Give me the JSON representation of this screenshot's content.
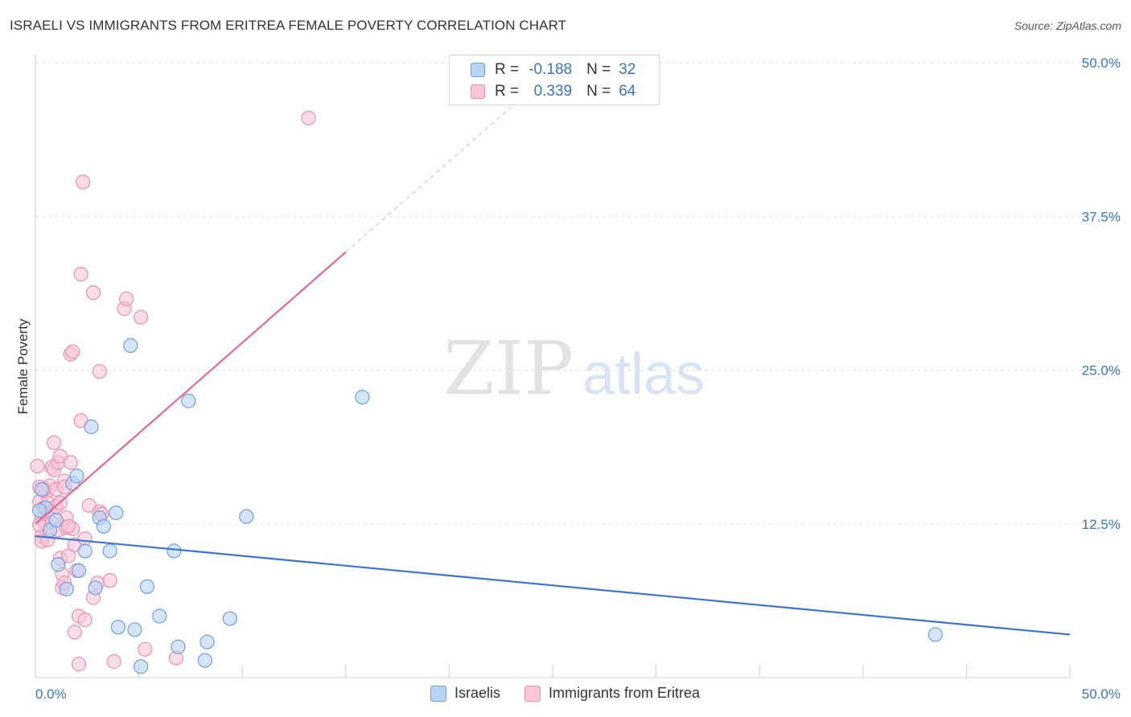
{
  "title": "ISRAELI VS IMMIGRANTS FROM ERITREA FEMALE POVERTY CORRELATION CHART",
  "source": "Source: ZipAtlas.com",
  "watermark": {
    "zip": "ZIP",
    "atlas": "atlas"
  },
  "legend_top": {
    "rows": [
      {
        "r_label": "R =",
        "r_value": "-0.188",
        "n_label": "N =",
        "n_value": "32"
      },
      {
        "r_label": "R =",
        "r_value": "0.339",
        "n_label": "N =",
        "n_value": "64"
      }
    ]
  },
  "legend_bottom": [
    "Israelis",
    "Immigrants from Eritrea"
  ],
  "colors": {
    "blue_fill": "#b9d3f5",
    "blue_stroke": "#6d9fe0",
    "blue_line": "#3a76cf",
    "pink_fill": "#f8c6d6",
    "pink_stroke": "#ec8fb0",
    "pink_line": "#e5688f",
    "grid": "#dddddd",
    "tick_label": "#3a72c8"
  },
  "chart_data": {
    "type": "scatter",
    "title": "ISRAELI VS IMMIGRANTS FROM ERITREA FEMALE POVERTY CORRELATION CHART",
    "xlabel": "",
    "ylabel": "Female Poverty",
    "xlim": [
      0,
      50
    ],
    "ylim": [
      0,
      50
    ],
    "x_tick_labels": [
      "0.0%",
      "50.0%"
    ],
    "y_ticks": [
      12.5,
      25.0,
      37.5,
      50.0
    ],
    "y_tick_labels": [
      "12.5%",
      "25.0%",
      "37.5%",
      "50.0%"
    ],
    "grid": true,
    "series": [
      {
        "name": "Israelis",
        "r": -0.188,
        "n": 32,
        "points": [
          [
            0.5,
            13.8
          ],
          [
            0.3,
            15.3
          ],
          [
            0.7,
            12.0
          ],
          [
            1.0,
            12.8
          ],
          [
            1.1,
            9.2
          ],
          [
            1.5,
            7.2
          ],
          [
            1.8,
            15.8
          ],
          [
            2.0,
            16.4
          ],
          [
            2.1,
            8.7
          ],
          [
            2.4,
            10.3
          ],
          [
            2.7,
            20.4
          ],
          [
            2.9,
            7.3
          ],
          [
            3.1,
            13.0
          ],
          [
            3.3,
            12.3
          ],
          [
            3.6,
            10.3
          ],
          [
            3.9,
            13.4
          ],
          [
            4.0,
            4.1
          ],
          [
            4.6,
            27.0
          ],
          [
            4.8,
            3.9
          ],
          [
            5.1,
            0.9
          ],
          [
            5.4,
            7.4
          ],
          [
            6.0,
            5.0
          ],
          [
            6.7,
            10.3
          ],
          [
            6.9,
            2.5
          ],
          [
            7.4,
            22.5
          ],
          [
            8.2,
            1.4
          ],
          [
            8.3,
            2.9
          ],
          [
            9.4,
            4.8
          ],
          [
            10.2,
            13.1
          ],
          [
            15.8,
            22.8
          ],
          [
            43.5,
            3.5
          ],
          [
            0.2,
            13.6
          ]
        ],
        "trend": {
          "x": [
            0.0,
            50.0
          ],
          "y": [
            11.5,
            3.5
          ],
          "style": "solid"
        }
      },
      {
        "name": "Immigrants from Eritrea",
        "r": 0.339,
        "n": 64,
        "points": [
          [
            0.1,
            17.2
          ],
          [
            0.2,
            15.5
          ],
          [
            0.2,
            14.3
          ],
          [
            0.3,
            12.9
          ],
          [
            0.3,
            11.5
          ],
          [
            0.3,
            11.1
          ],
          [
            0.4,
            13.8
          ],
          [
            0.5,
            15.1
          ],
          [
            0.5,
            12.5
          ],
          [
            0.6,
            14.2
          ],
          [
            0.6,
            11.2
          ],
          [
            0.7,
            15.6
          ],
          [
            0.7,
            13.4
          ],
          [
            0.8,
            12.6
          ],
          [
            0.8,
            17.1
          ],
          [
            0.9,
            19.1
          ],
          [
            0.9,
            16.9
          ],
          [
            1.0,
            15.3
          ],
          [
            1.0,
            13.9
          ],
          [
            1.1,
            12.0
          ],
          [
            1.1,
            17.5
          ],
          [
            1.2,
            18.0
          ],
          [
            1.2,
            14.2
          ],
          [
            1.2,
            9.7
          ],
          [
            1.3,
            8.4
          ],
          [
            1.3,
            7.3
          ],
          [
            1.4,
            16.0
          ],
          [
            1.4,
            15.5
          ],
          [
            1.4,
            7.7
          ],
          [
            1.5,
            13.0
          ],
          [
            1.5,
            12.2
          ],
          [
            1.6,
            9.9
          ],
          [
            1.7,
            26.3
          ],
          [
            1.7,
            17.5
          ],
          [
            1.8,
            12.1
          ],
          [
            1.8,
            26.5
          ],
          [
            1.9,
            10.8
          ],
          [
            1.9,
            3.7
          ],
          [
            2.0,
            8.7
          ],
          [
            2.1,
            5.0
          ],
          [
            2.1,
            1.1
          ],
          [
            2.2,
            20.9
          ],
          [
            2.3,
            40.3
          ],
          [
            2.2,
            32.8
          ],
          [
            2.4,
            11.3
          ],
          [
            2.4,
            4.7
          ],
          [
            2.6,
            14.0
          ],
          [
            2.8,
            31.3
          ],
          [
            2.8,
            6.5
          ],
          [
            3.0,
            7.7
          ],
          [
            3.1,
            24.9
          ],
          [
            3.1,
            13.5
          ],
          [
            3.2,
            13.3
          ],
          [
            3.6,
            7.9
          ],
          [
            3.8,
            1.3
          ],
          [
            4.3,
            30.0
          ],
          [
            4.4,
            30.8
          ],
          [
            5.1,
            29.3
          ],
          [
            5.3,
            2.3
          ],
          [
            6.8,
            1.6
          ],
          [
            13.2,
            45.5
          ],
          [
            0.2,
            12.4
          ],
          [
            0.4,
            15.3
          ],
          [
            1.6,
            12.3
          ]
        ],
        "trend": {
          "x": [
            0.0,
            15.0
          ],
          "y": [
            12.5,
            34.6
          ],
          "style": "solid",
          "extension": {
            "x": [
              15.0,
              23.0
            ],
            "y": [
              34.6,
              46.4
            ],
            "style": "dashed"
          }
        }
      }
    ]
  }
}
